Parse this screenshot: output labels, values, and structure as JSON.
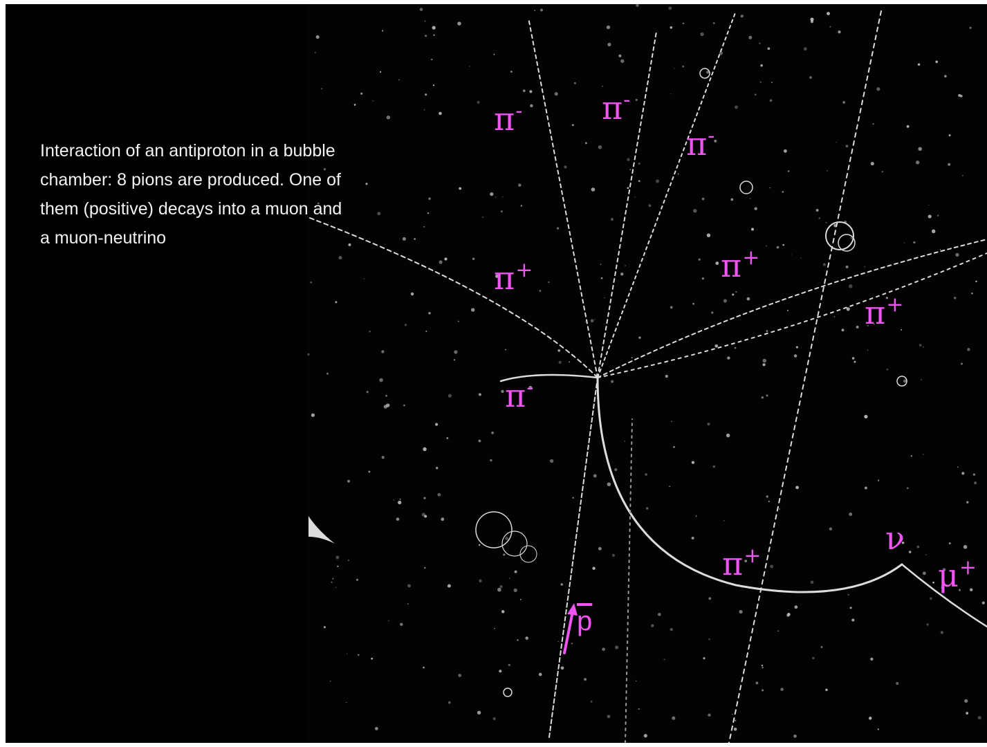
{
  "caption": {
    "lines": [
      "Interaction of an antiproton in a bubble",
      "chamber: 8 pions are produced. One of",
      "them (positive) decays into a muon and",
      "a muon-neutrino"
    ]
  },
  "particle_labels": [
    {
      "symbol": "π",
      "sign": "-"
    },
    {
      "symbol": "π",
      "sign": "-"
    },
    {
      "symbol": "π",
      "sign": "-"
    },
    {
      "symbol": "π",
      "sign": "+"
    },
    {
      "symbol": "π",
      "sign": "+"
    },
    {
      "symbol": "π",
      "sign": "+"
    },
    {
      "symbol": "π",
      "sign": "-"
    },
    {
      "symbol": "π",
      "sign": "+"
    },
    {
      "symbol": "ν",
      "sign": ""
    },
    {
      "symbol": "μ",
      "sign": "+"
    },
    {
      "symbol": "p",
      "sign": ""
    }
  ],
  "colors": {
    "label_magenta": "#ef55f0",
    "track_white": "#e8e8e8",
    "background": "#000000",
    "caption_text": "#f2f2f2"
  },
  "icons": {
    "beam_arrow": "arrow-up-icon"
  }
}
